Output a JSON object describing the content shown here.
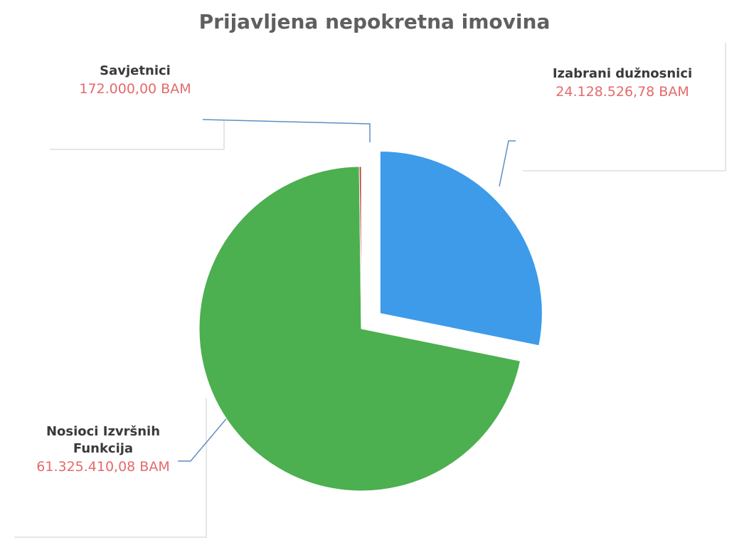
{
  "chart_data": {
    "type": "pie",
    "title": "Prijavljena nepokretna imovina",
    "categories": [
      "Izabrani dužnosnici",
      "Nosioci Izvršnih Funkcija",
      "Savjetnici"
    ],
    "values": [
      24128526.78,
      61325410.08,
      172000.0
    ],
    "value_labels": [
      "24.128.526,78 BAM",
      "61.325.410,08 BAM",
      "172.000,00 BAM"
    ],
    "colors": [
      "#3d9be9",
      "#4caf50",
      "#c0392b"
    ]
  }
}
